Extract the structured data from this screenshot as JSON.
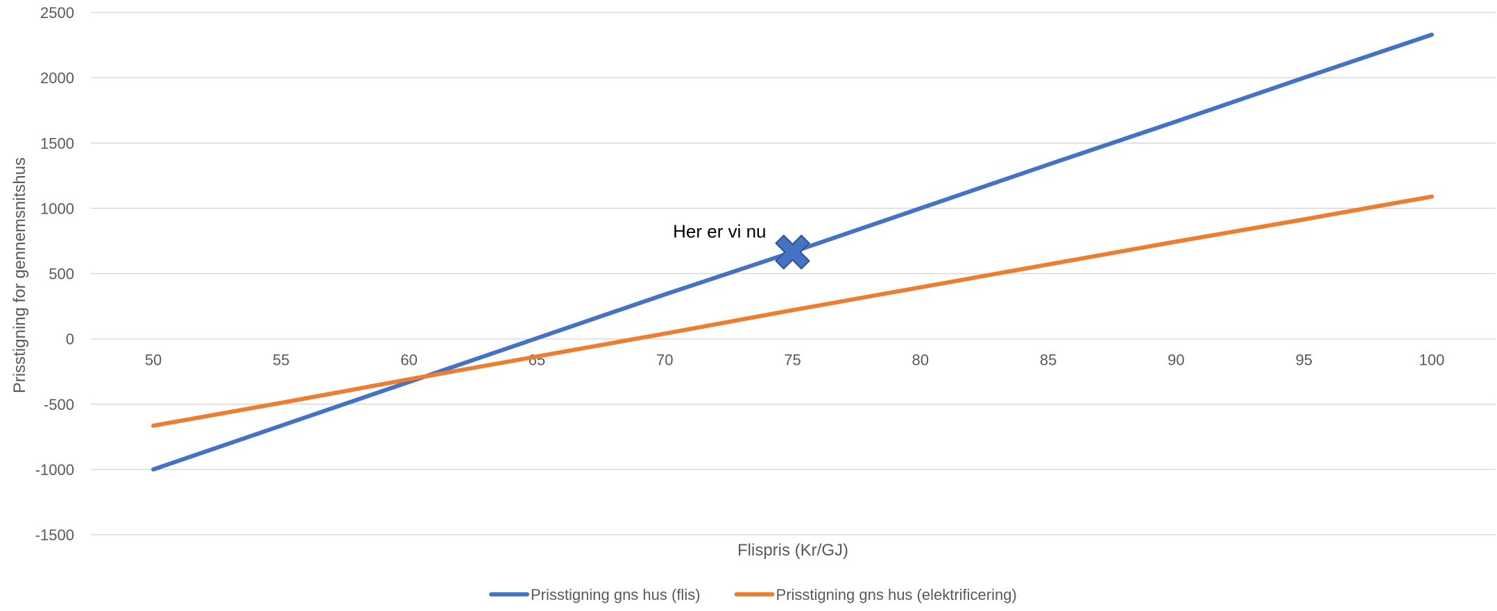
{
  "chart_data": {
    "type": "line",
    "xlabel": "Flispris (Kr/GJ)",
    "ylabel": "Prisstigning for gennemsnitshus",
    "ylim": [
      -1500,
      2500
    ],
    "yticks": [
      2500,
      2000,
      1500,
      1000,
      500,
      0,
      -500,
      -1000,
      -1500
    ],
    "x": [
      50,
      55,
      60,
      65,
      70,
      75,
      80,
      85,
      90,
      95,
      100
    ],
    "xtick_labels": [
      "50",
      "55",
      "60",
      "65",
      "70",
      "75",
      "80",
      "85",
      "90",
      "95",
      "100"
    ],
    "grid": true,
    "legend_position": "bottom",
    "series": [
      {
        "name": "Prisstigning gns hus (flis)",
        "color": "#4472C4",
        "values": [
          -1000,
          -665,
          -330,
          5,
          340,
          665,
          1000,
          1335,
          1665,
          2000,
          2330
        ]
      },
      {
        "name": "Prisstigning gns hus (elektrificering)",
        "color": "#ED7D31",
        "values": [
          -665,
          -490,
          -310,
          -135,
          40,
          220,
          395,
          570,
          745,
          915,
          1090
        ]
      }
    ],
    "annotations": [
      {
        "text": "Her er vi nu",
        "x": 75,
        "y": 665,
        "marker": "x-marker",
        "color": "#4472C4"
      }
    ]
  }
}
